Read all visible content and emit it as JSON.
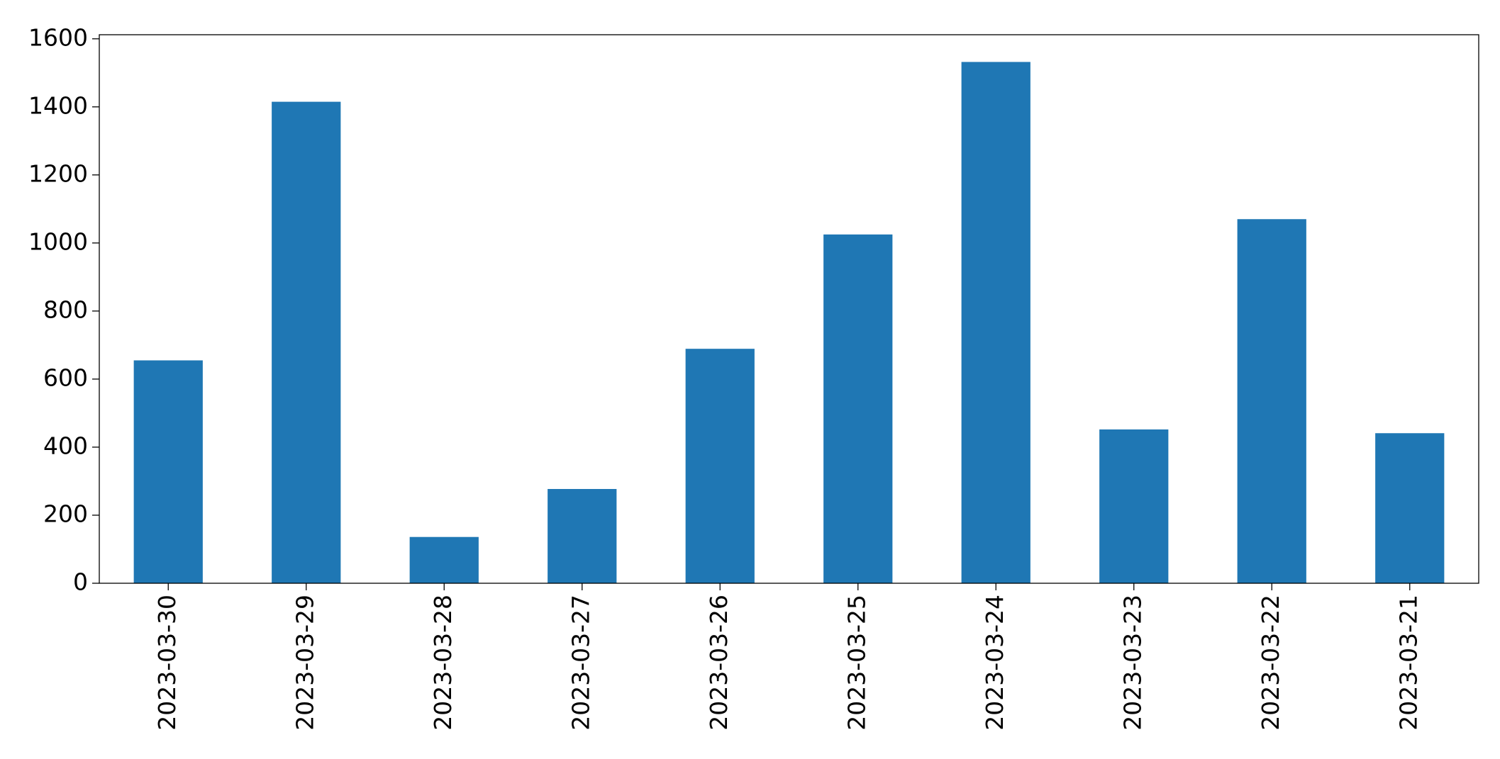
{
  "chart_data": {
    "type": "bar",
    "categories": [
      "2023-03-30",
      "2023-03-29",
      "2023-03-28",
      "2023-03-27",
      "2023-03-26",
      "2023-03-25",
      "2023-03-24",
      "2023-03-23",
      "2023-03-22",
      "2023-03-21"
    ],
    "values": [
      655,
      1415,
      136,
      277,
      689,
      1025,
      1532,
      452,
      1070,
      441
    ],
    "color": "#1f77b4",
    "ylim": [
      0,
      1612
    ],
    "yticks": [
      0,
      200,
      400,
      600,
      800,
      1000,
      1200,
      1400,
      1600
    ],
    "grid": false
  }
}
